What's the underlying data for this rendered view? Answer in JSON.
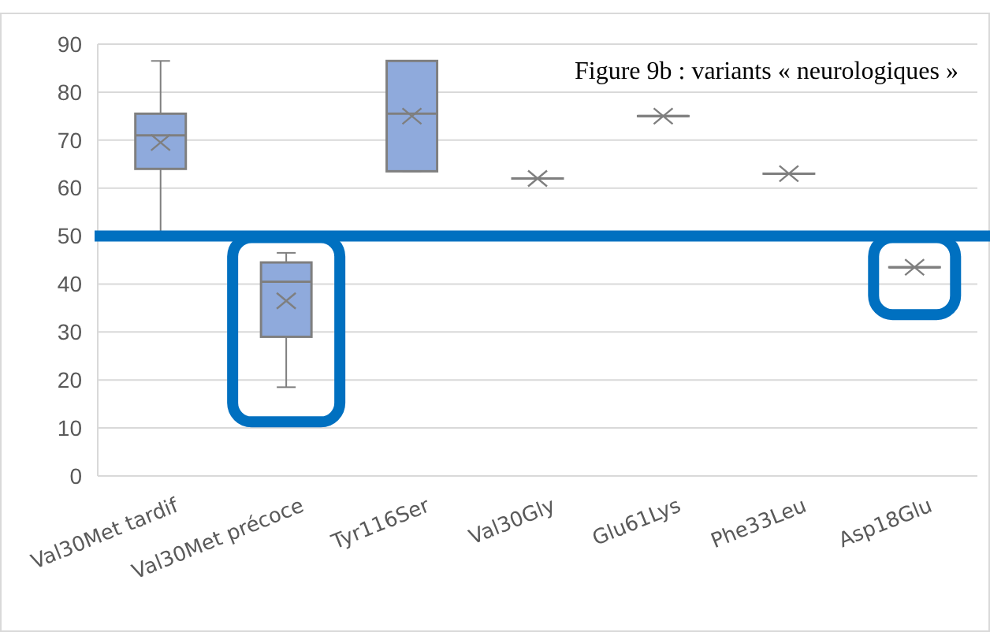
{
  "chart_data": {
    "type": "box",
    "title": "Figure 9b : variants « neurologiques »",
    "categories": [
      "Val30Met tardif",
      "Val30Met précoce",
      "Tyr116Ser",
      "Val30Gly",
      "Glu61Lys",
      "Phe33Leu",
      "Asp18Glu"
    ],
    "boxes": [
      {
        "low": 50,
        "q1": 64,
        "median": 71,
        "q3": 75.5,
        "high": 86.5,
        "mean": 69.5
      },
      {
        "low": 18.5,
        "q1": 29,
        "median": 40.5,
        "q3": 44.5,
        "high": 46.5,
        "mean": 36.5
      },
      {
        "low": 63.5,
        "q1": 63.5,
        "median": 75.5,
        "q3": 86.5,
        "high": 86.5,
        "mean": 75
      },
      {
        "low": 62,
        "q1": 62,
        "median": 62,
        "q3": 62,
        "high": 62,
        "mean": 62
      },
      {
        "low": 75,
        "q1": 75,
        "median": 75,
        "q3": 75,
        "high": 75,
        "mean": 75
      },
      {
        "low": 63,
        "q1": 63,
        "median": 63,
        "q3": 63,
        "high": 63,
        "mean": 63
      },
      {
        "low": 43.5,
        "q1": 43.5,
        "median": 43.5,
        "q3": 43.5,
        "high": 43.5,
        "mean": 43.5
      }
    ],
    "color": "#8faadc",
    "ylim": [
      0,
      90
    ],
    "yticks": [
      0,
      10,
      20,
      30,
      40,
      50,
      60,
      70,
      80,
      90
    ],
    "grid": "y",
    "ref_lines": [
      {
        "axis": "y",
        "value": 50,
        "color": "#0070c0"
      }
    ]
  }
}
